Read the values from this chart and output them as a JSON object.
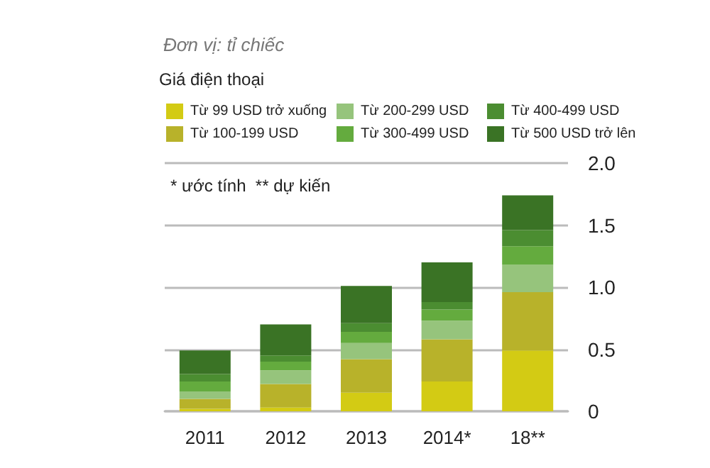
{
  "chart_data": {
    "type": "bar",
    "stacked": true,
    "title": "Đơn vị: tỉ chiếc",
    "legend_title": "Giá điện thoại",
    "annotations": [
      "* ước tính  ** dự kiến"
    ],
    "categories": [
      "2011",
      "2012",
      "2013",
      "2014*",
      "18**"
    ],
    "series": [
      {
        "name": "Từ 99 USD trở xuống",
        "color": "#d3cb14",
        "values": [
          0.02,
          0.03,
          0.15,
          0.24,
          0.49
        ]
      },
      {
        "name": "Từ 100-199 USD",
        "color": "#b8b22a",
        "values": [
          0.08,
          0.19,
          0.27,
          0.34,
          0.47
        ]
      },
      {
        "name": "Từ 200-299 USD",
        "color": "#96c47c",
        "values": [
          0.06,
          0.11,
          0.13,
          0.15,
          0.22
        ]
      },
      {
        "name": "Từ 300-499 USD",
        "color": "#64ab3e",
        "values": [
          0.08,
          0.07,
          0.09,
          0.09,
          0.15
        ]
      },
      {
        "name": "Từ 400-499 USD",
        "color": "#4b8d31",
        "values": [
          0.06,
          0.05,
          0.07,
          0.06,
          0.13
        ]
      },
      {
        "name": "Từ 500 USD trở lên",
        "color": "#3a7325",
        "values": [
          0.19,
          0.25,
          0.3,
          0.32,
          0.28
        ]
      }
    ],
    "ylim": [
      0,
      2
    ],
    "yticks": [
      0,
      0.5,
      {
        "value": 1,
        "label": "1.0"
      },
      1.5,
      {
        "value": 2,
        "label": "2.0"
      }
    ],
    "grid": "y",
    "legend": "top"
  }
}
